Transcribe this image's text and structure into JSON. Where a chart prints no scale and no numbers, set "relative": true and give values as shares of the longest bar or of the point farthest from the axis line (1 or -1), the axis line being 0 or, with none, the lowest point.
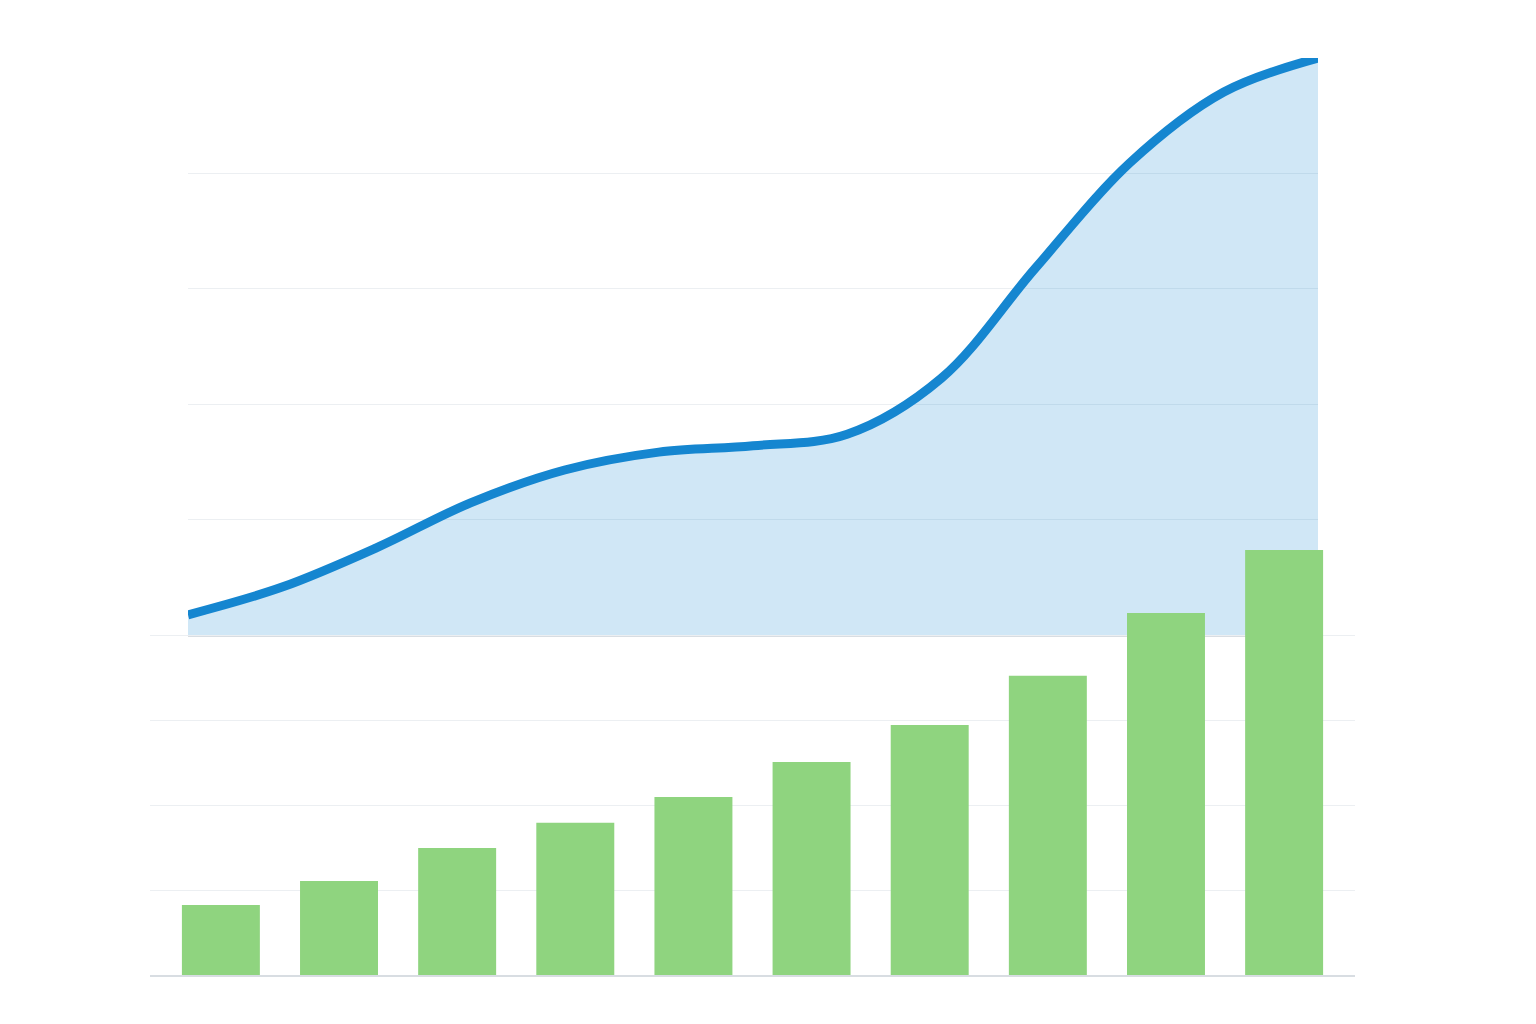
{
  "chart_data": [
    {
      "type": "area",
      "relative": true,
      "grid": "y",
      "categories": [
        null,
        null,
        null,
        null,
        null,
        null,
        null,
        null,
        null,
        null,
        null,
        null,
        null
      ],
      "series": [
        {
          "color": "#1586d0",
          "values": [
            0.035,
            0.083,
            0.151,
            0.229,
            0.286,
            0.317,
            0.328,
            0.348,
            0.445,
            0.636,
            0.818,
            0.941,
            1
          ]
        }
      ]
    },
    {
      "type": "bar",
      "relative": true,
      "grid": "y",
      "categories": [
        null,
        null,
        null,
        null,
        null,
        null,
        null,
        null,
        null,
        null
      ],
      "series": [
        {
          "color": "#8fd47f",
          "values": [
            0.165,
            0.221,
            0.299,
            0.358,
            0.419,
            0.501,
            0.588,
            0.704,
            0.852,
            1
          ]
        }
      ]
    }
  ]
}
